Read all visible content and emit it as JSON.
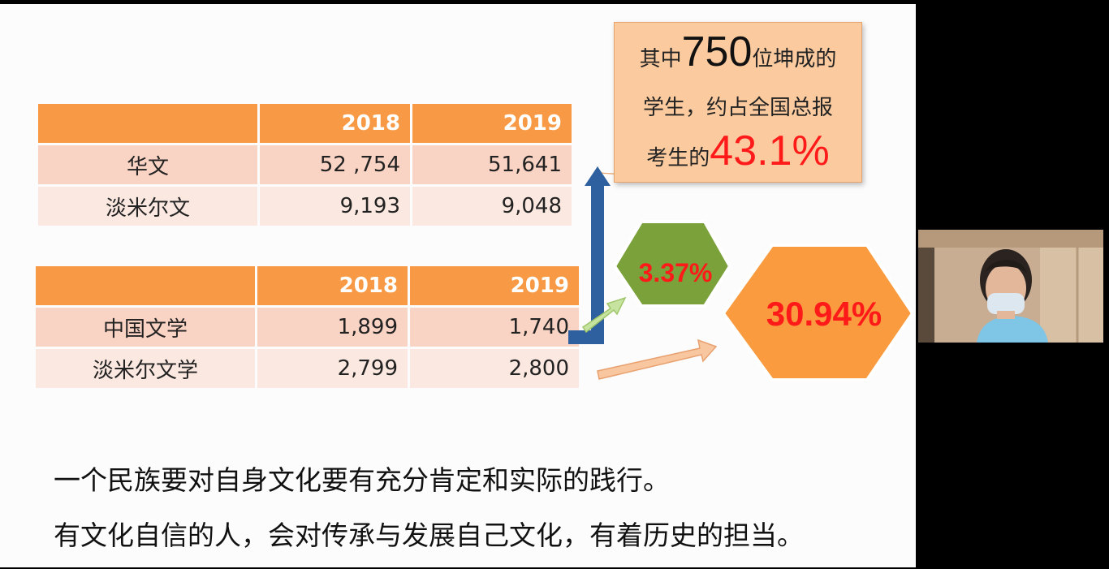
{
  "table1": {
    "headers": [
      "",
      "2018",
      "2019"
    ],
    "rows": [
      {
        "label": "华文",
        "v2018": "52 ,754",
        "v2019": "51,641"
      },
      {
        "label": "淡米尔文",
        "v2018": "9,193",
        "v2019": "9,048"
      }
    ]
  },
  "table2": {
    "headers": [
      "",
      "2018",
      "2019"
    ],
    "rows": [
      {
        "label": "中国文学",
        "v2018": "1,899",
        "v2019": "1,740"
      },
      {
        "label": "淡米尔文学",
        "v2018": "2,799",
        "v2019": "2,800"
      }
    ]
  },
  "callout": {
    "line1_prefix": "其中",
    "line1_number": "750",
    "line1_suffix": "位坤成的",
    "line2": "学生，约占全国总报",
    "line3_prefix": "考生的",
    "line3_percent": "43.1%"
  },
  "hex_green": {
    "value": "3.37%"
  },
  "hex_orange": {
    "value": "30.94%"
  },
  "bottom_text": {
    "line1": "一个民族要对自身文化要有充分肯定和实际的践行。",
    "line2": "有文化自信的人，会对传承与发展自己文化，有着历史的担当。"
  },
  "colors": {
    "header_orange": "#f89a45",
    "row_pink": "#f9d3c3",
    "row_light": "#fbe8e0",
    "callout_bg": "#fbcb9f",
    "hex_green": "#7aa13a",
    "hex_orange": "#f99b3e",
    "highlight_red": "#ff1a1a",
    "arrow_blue": "#2e5f9e"
  },
  "webcam": {
    "icon": "presenter-video-feed"
  }
}
